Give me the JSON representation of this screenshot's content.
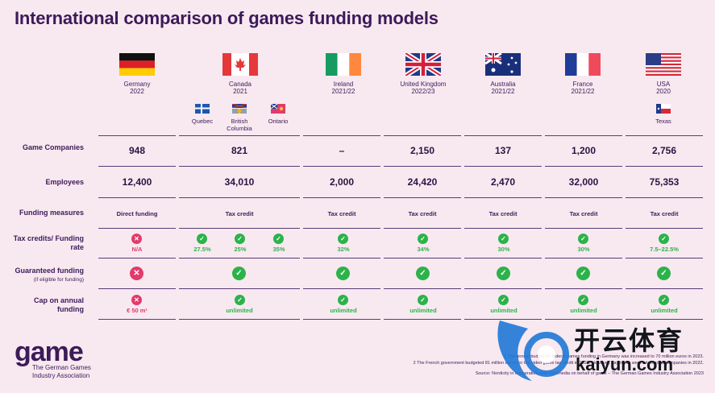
{
  "title": "International comparison of games funding models",
  "countries": [
    {
      "name": "Germany",
      "year": "2022",
      "companies": "948",
      "employees": "12,400",
      "measure": "Direct funding",
      "rate": "N/A",
      "rate_ok": false,
      "guaranteed_ok": false,
      "cap": "€ 50 m¹",
      "cap_ok": false
    },
    {
      "name": "Canada",
      "year": "2021",
      "companies": "821",
      "employees": "34,010",
      "measure": "Tax credit",
      "rate": "",
      "rate_ok": true,
      "guaranteed_ok": true,
      "cap": "unlimited",
      "cap_ok": true
    },
    {
      "name": "Ireland",
      "year": "2021/22",
      "companies": "–",
      "employees": "2,000",
      "measure": "Tax credit",
      "rate": "32%",
      "rate_ok": true,
      "guaranteed_ok": true,
      "cap": "unlimited",
      "cap_ok": true
    },
    {
      "name": "United Kingdom",
      "year": "2022/23",
      "companies": "2,150",
      "employees": "24,420",
      "measure": "Tax credit",
      "rate": "34%",
      "rate_ok": true,
      "guaranteed_ok": true,
      "cap": "unlimited",
      "cap_ok": true
    },
    {
      "name": "Australia",
      "year": "2021/22",
      "companies": "137",
      "employees": "2,470",
      "measure": "Tax credit",
      "rate": "30%",
      "rate_ok": true,
      "guaranteed_ok": true,
      "cap": "unlimited",
      "cap_ok": true
    },
    {
      "name": "France",
      "year": "2021/22",
      "companies": "1,200",
      "employees": "32,000",
      "measure": "Tax credit",
      "rate": "30%",
      "rate_ok": true,
      "guaranteed_ok": true,
      "cap": "unlimited",
      "cap_ok": true
    },
    {
      "name": "USA",
      "year": "2020",
      "companies": "2,756",
      "employees": "75,353",
      "measure": "Tax credit",
      "rate": "7.5–22.5%",
      "rate_ok": true,
      "guaranteed_ok": true,
      "cap": "unlimited",
      "cap_ok": true
    }
  ],
  "canada_provinces": [
    {
      "name": "Quebec",
      "rate": "27.5%"
    },
    {
      "name": "British Columbia",
      "rate": "25%"
    },
    {
      "name": "Ontario",
      "rate": "35%"
    }
  ],
  "usa_state": "Texas",
  "row_labels": {
    "companies": "Game Companies",
    "employees": "Employees",
    "measures": "Funding measures",
    "rate": "Tax credits/ Funding rate",
    "guaranteed": "Guaranteed funding",
    "guaranteed_sub": "(if eligible for funding)",
    "cap": "Cap on annual funding"
  },
  "logo": {
    "word": "game",
    "sub1": "The German Games",
    "sub2": "Industry Association"
  },
  "footnotes": {
    "f1": "1 The annual budget for federal games funding in Germany was increased to 70 million euros in 2023.",
    "f2": "2 The French government budgeted 81 million euros for the video game tax credit in 2023. However, payments were returned to companies in 2022.",
    "source": "Source: Nordicity in cooperation with Goldmedia on behalf of game – The German Games Industry Association 2023"
  },
  "watermark": {
    "cn": "开云体育",
    "en": "kaiyun.com"
  },
  "colors": {
    "check": "#2bb34a",
    "cross": "#e23b6b",
    "text": "#3d1a5a",
    "bg": "#f8e9f0"
  }
}
